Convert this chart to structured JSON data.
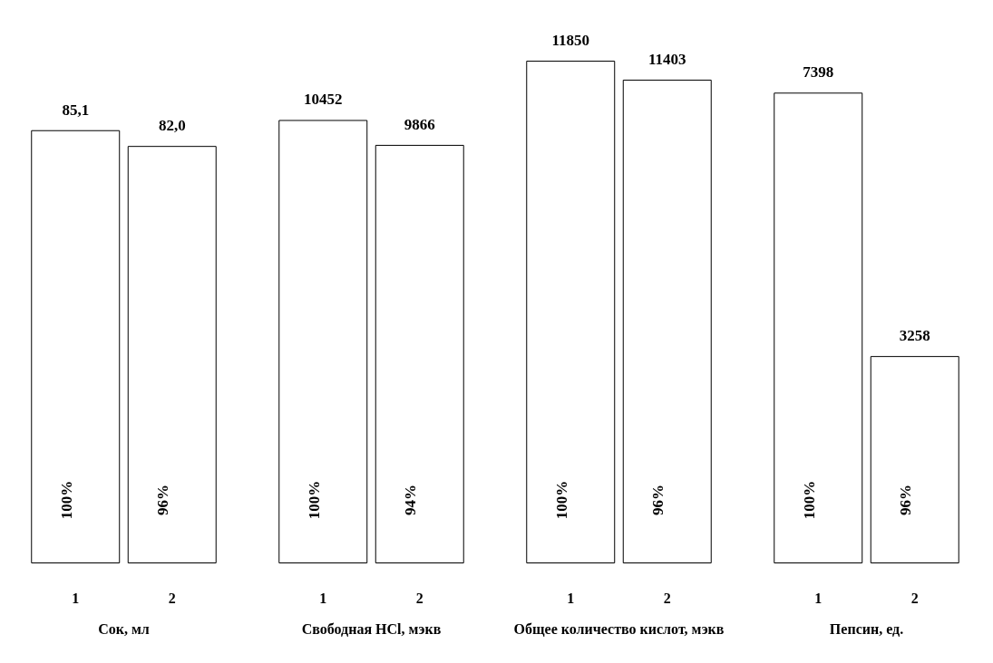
{
  "chart_data": [
    {
      "type": "bar",
      "categories": [
        "1",
        "2"
      ],
      "values": [
        85.1,
        82.0
      ],
      "value_labels": [
        "85,1",
        "82,0"
      ],
      "colors": [
        "#ffffff",
        "#ffffff"
      ],
      "xlabel": "Сок, мл",
      "annotations": [
        "100%",
        "96%"
      ]
    },
    {
      "type": "bar",
      "categories": [
        "1",
        "2"
      ],
      "values": [
        10452,
        9866
      ],
      "value_labels": [
        "10452",
        "9866"
      ],
      "colors": [
        "#ffffff",
        "#ffffff"
      ],
      "xlabel": "Свободная HCl, мэкв",
      "annotations": [
        "100%",
        "94%"
      ]
    },
    {
      "type": "bar",
      "categories": [
        "1",
        "2"
      ],
      "values": [
        11850,
        11403
      ],
      "value_labels": [
        "11850",
        "11403"
      ],
      "colors": [
        "#ffffff",
        "#ffffff"
      ],
      "xlabel": "Общее количество кислот, мэкв",
      "annotations": [
        "100%",
        "96%"
      ]
    },
    {
      "type": "bar",
      "categories": [
        "1",
        "2"
      ],
      "values": [
        7398,
        3258
      ],
      "value_labels": [
        "7398",
        "3258"
      ],
      "colors": [
        "#ffffff",
        "#ffffff"
      ],
      "xlabel": "Пепсин, ед.",
      "annotations": [
        "100%",
        "96%"
      ]
    }
  ]
}
